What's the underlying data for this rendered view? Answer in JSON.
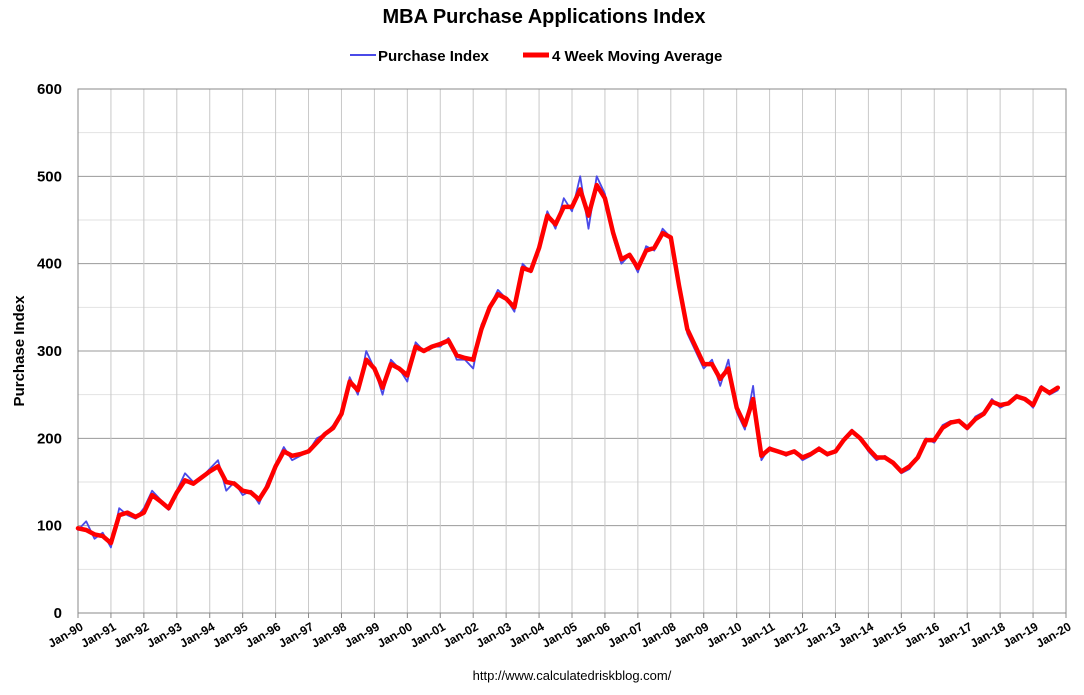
{
  "chart_data": {
    "type": "line",
    "title": "MBA Purchase Applications Index",
    "xlabel": "",
    "ylabel": "Purchase Index",
    "ylim": [
      0,
      600
    ],
    "yticks": [
      0,
      100,
      200,
      300,
      400,
      500,
      600
    ],
    "xlim": [
      1990,
      2020
    ],
    "xtick_labels": [
      "Jan-90",
      "Jan-91",
      "Jan-92",
      "Jan-93",
      "Jan-94",
      "Jan-95",
      "Jan-96",
      "Jan-97",
      "Jan-98",
      "Jan-99",
      "Jan-00",
      "Jan-01",
      "Jan-02",
      "Jan-03",
      "Jan-04",
      "Jan-05",
      "Jan-06",
      "Jan-07",
      "Jan-08",
      "Jan-09",
      "Jan-10",
      "Jan-11",
      "Jan-12",
      "Jan-13",
      "Jan-14",
      "Jan-15",
      "Jan-16",
      "Jan-17",
      "Jan-18",
      "Jan-19",
      "Jan-20"
    ],
    "grid": true,
    "legend_position": "top",
    "source": "http://www.calculatedriskblog.com/",
    "series": [
      {
        "name": "Purchase Index",
        "color": "#4a4ae8",
        "x": [
          1990.0,
          1990.25,
          1990.5,
          1990.75,
          1991.0,
          1991.25,
          1991.5,
          1991.75,
          1992.0,
          1992.25,
          1992.5,
          1992.75,
          1993.0,
          1993.25,
          1993.5,
          1993.75,
          1994.0,
          1994.25,
          1994.5,
          1994.75,
          1995.0,
          1995.25,
          1995.5,
          1995.75,
          1996.0,
          1996.25,
          1996.5,
          1996.75,
          1997.0,
          1997.25,
          1997.5,
          1997.75,
          1998.0,
          1998.25,
          1998.5,
          1998.75,
          1999.0,
          1999.25,
          1999.5,
          1999.75,
          2000.0,
          2000.25,
          2000.5,
          2000.75,
          2001.0,
          2001.25,
          2001.5,
          2001.75,
          2002.0,
          2002.25,
          2002.5,
          2002.75,
          2003.0,
          2003.25,
          2003.5,
          2003.75,
          2004.0,
          2004.25,
          2004.5,
          2004.75,
          2005.0,
          2005.25,
          2005.5,
          2005.75,
          2006.0,
          2006.25,
          2006.5,
          2006.75,
          2007.0,
          2007.25,
          2007.5,
          2007.75,
          2008.0,
          2008.25,
          2008.5,
          2008.75,
          2009.0,
          2009.25,
          2009.5,
          2009.75,
          2010.0,
          2010.25,
          2010.5,
          2010.75,
          2011.0,
          2011.25,
          2011.5,
          2011.75,
          2012.0,
          2012.25,
          2012.5,
          2012.75,
          2013.0,
          2013.25,
          2013.5,
          2013.75,
          2014.0,
          2014.25,
          2014.5,
          2014.75,
          2015.0,
          2015.25,
          2015.5,
          2015.75,
          2016.0,
          2016.25,
          2016.5,
          2016.75,
          2017.0,
          2017.25,
          2017.5,
          2017.75,
          2018.0,
          2018.25,
          2018.5,
          2018.75,
          2019.0,
          2019.25,
          2019.5,
          2019.75
        ],
        "values": [
          95,
          105,
          85,
          92,
          75,
          120,
          112,
          108,
          120,
          140,
          130,
          118,
          140,
          160,
          150,
          155,
          165,
          175,
          140,
          150,
          135,
          140,
          125,
          150,
          170,
          190,
          175,
          180,
          185,
          200,
          205,
          215,
          230,
          270,
          250,
          300,
          280,
          250,
          290,
          280,
          265,
          310,
          300,
          305,
          305,
          315,
          290,
          290,
          280,
          330,
          350,
          370,
          360,
          345,
          400,
          390,
          420,
          460,
          440,
          475,
          460,
          500,
          440,
          500,
          480,
          430,
          400,
          410,
          390,
          420,
          415,
          440,
          430,
          370,
          320,
          300,
          280,
          290,
          260,
          290,
          230,
          210,
          260,
          175,
          190,
          185,
          180,
          185,
          175,
          180,
          190,
          180,
          185,
          200,
          210,
          200,
          185,
          175,
          180,
          170,
          160,
          165,
          180,
          200,
          195,
          215,
          220,
          220,
          210,
          225,
          230,
          245,
          235,
          240,
          250,
          245,
          235,
          260,
          250,
          255
        ]
      },
      {
        "name": "4 Week Moving Average",
        "color": "#ff0000",
        "x": [
          1990.0,
          1990.25,
          1990.5,
          1990.75,
          1991.0,
          1991.25,
          1991.5,
          1991.75,
          1992.0,
          1992.25,
          1992.5,
          1992.75,
          1993.0,
          1993.25,
          1993.5,
          1993.75,
          1994.0,
          1994.25,
          1994.5,
          1994.75,
          1995.0,
          1995.25,
          1995.5,
          1995.75,
          1996.0,
          1996.25,
          1996.5,
          1996.75,
          1997.0,
          1997.25,
          1997.5,
          1997.75,
          1998.0,
          1998.25,
          1998.5,
          1998.75,
          1999.0,
          1999.25,
          1999.5,
          1999.75,
          2000.0,
          2000.25,
          2000.5,
          2000.75,
          2001.0,
          2001.25,
          2001.5,
          2001.75,
          2002.0,
          2002.25,
          2002.5,
          2002.75,
          2003.0,
          2003.25,
          2003.5,
          2003.75,
          2004.0,
          2004.25,
          2004.5,
          2004.75,
          2005.0,
          2005.25,
          2005.5,
          2005.75,
          2006.0,
          2006.25,
          2006.5,
          2006.75,
          2007.0,
          2007.25,
          2007.5,
          2007.75,
          2008.0,
          2008.25,
          2008.5,
          2008.75,
          2009.0,
          2009.25,
          2009.5,
          2009.75,
          2010.0,
          2010.25,
          2010.5,
          2010.75,
          2011.0,
          2011.25,
          2011.5,
          2011.75,
          2012.0,
          2012.25,
          2012.5,
          2012.75,
          2013.0,
          2013.25,
          2013.5,
          2013.75,
          2014.0,
          2014.25,
          2014.5,
          2014.75,
          2015.0,
          2015.25,
          2015.5,
          2015.75,
          2016.0,
          2016.25,
          2016.5,
          2016.75,
          2017.0,
          2017.25,
          2017.5,
          2017.75,
          2018.0,
          2018.25,
          2018.5,
          2018.75,
          2019.0,
          2019.25,
          2019.5,
          2019.75
        ],
        "values": [
          97,
          95,
          90,
          88,
          80,
          112,
          115,
          110,
          115,
          135,
          128,
          120,
          138,
          152,
          148,
          155,
          162,
          168,
          150,
          148,
          140,
          138,
          130,
          145,
          168,
          185,
          180,
          182,
          185,
          195,
          205,
          212,
          228,
          265,
          255,
          290,
          280,
          258,
          285,
          280,
          272,
          305,
          300,
          305,
          308,
          312,
          295,
          292,
          290,
          325,
          350,
          365,
          360,
          350,
          395,
          392,
          418,
          455,
          445,
          465,
          465,
          485,
          455,
          490,
          475,
          435,
          405,
          410,
          395,
          415,
          418,
          435,
          430,
          375,
          325,
          305,
          285,
          285,
          268,
          280,
          235,
          215,
          245,
          180,
          188,
          185,
          182,
          185,
          178,
          182,
          188,
          182,
          185,
          198,
          208,
          200,
          188,
          178,
          178,
          172,
          162,
          168,
          178,
          198,
          198,
          212,
          218,
          220,
          212,
          222,
          228,
          242,
          238,
          240,
          248,
          245,
          238,
          258,
          252,
          258
        ]
      }
    ]
  }
}
